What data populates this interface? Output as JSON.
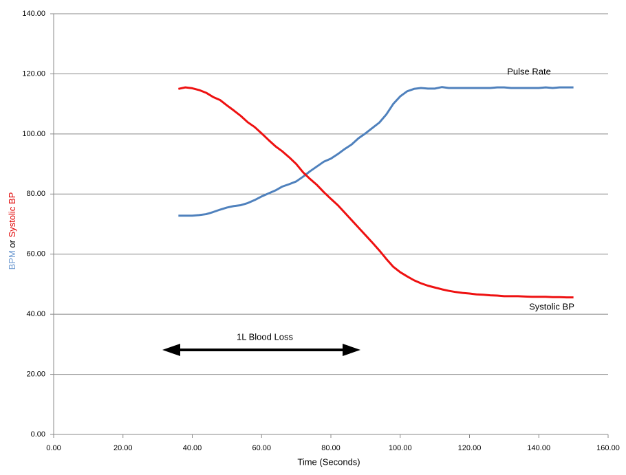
{
  "chart_data": {
    "type": "line",
    "xlabel": "Time (Seconds)",
    "ylabel_parts": [
      {
        "text": "BPM",
        "color": "#6f9bd1"
      },
      {
        "text": "or",
        "color": "#000000"
      },
      {
        "text": "Systolic BP",
        "color": "#e00000"
      }
    ],
    "annotation": "1L Blood Loss",
    "x": [
      36,
      38,
      40,
      42,
      44,
      46,
      48,
      50,
      52,
      54,
      56,
      58,
      60,
      62,
      64,
      66,
      68,
      70,
      72,
      74,
      76,
      78,
      80,
      82,
      84,
      86,
      88,
      90,
      92,
      94,
      96,
      98,
      100,
      102,
      104,
      106,
      108,
      110,
      112,
      114,
      116,
      118,
      120,
      122,
      124,
      126,
      128,
      130,
      132,
      134,
      136,
      138,
      140,
      142,
      144,
      146,
      148,
      150
    ],
    "series": [
      {
        "name": "Pulse Rate",
        "color": "#4f81bd",
        "values": [
          72.8,
          72.8,
          72.8,
          73.0,
          73.3,
          74.0,
          74.8,
          75.5,
          76.0,
          76.3,
          77.0,
          78.0,
          79.2,
          80.2,
          81.2,
          82.5,
          83.3,
          84.2,
          85.8,
          87.6,
          89.2,
          90.8,
          91.8,
          93.3,
          95.0,
          96.5,
          98.6,
          100.2,
          102.0,
          103.8,
          106.5,
          110.0,
          112.5,
          114.2,
          115.0,
          115.3,
          115.1,
          115.1,
          115.6,
          115.3,
          115.3,
          115.3,
          115.3,
          115.3,
          115.3,
          115.3,
          115.5,
          115.5,
          115.3,
          115.3,
          115.3,
          115.3,
          115.3,
          115.5,
          115.3,
          115.5,
          115.5,
          115.5
        ]
      },
      {
        "name": "Systolic BP",
        "color": "#ee1111",
        "values": [
          115.0,
          115.5,
          115.2,
          114.6,
          113.7,
          112.3,
          111.3,
          109.5,
          107.8,
          106.0,
          103.9,
          102.3,
          100.2,
          98.0,
          95.9,
          94.2,
          92.2,
          90.0,
          87.2,
          85.0,
          83.0,
          80.6,
          78.4,
          76.3,
          73.8,
          71.3,
          68.8,
          66.3,
          63.8,
          61.2,
          58.4,
          55.8,
          54.0,
          52.6,
          51.3,
          50.3,
          49.5,
          48.9,
          48.3,
          47.8,
          47.4,
          47.1,
          46.9,
          46.6,
          46.5,
          46.3,
          46.2,
          46.0,
          46.0,
          46.0,
          45.9,
          45.8,
          45.8,
          45.8,
          45.7,
          45.7,
          45.6,
          45.6
        ]
      }
    ],
    "xlim": [
      0,
      160
    ],
    "xticks": [
      {
        "value": 0,
        "label": "0.00"
      },
      {
        "value": 20,
        "label": "20.00"
      },
      {
        "value": 40,
        "label": "40.00"
      },
      {
        "value": 60,
        "label": "60.00"
      },
      {
        "value": 80,
        "label": "80.00"
      },
      {
        "value": 100,
        "label": "100.00"
      },
      {
        "value": 120,
        "label": "120.00"
      },
      {
        "value": 140,
        "label": "140.00"
      },
      {
        "value": 160,
        "label": "160.00"
      }
    ],
    "ylim": [
      0,
      140
    ],
    "yticks": [
      {
        "value": 0,
        "label": "0.00"
      },
      {
        "value": 20,
        "label": "20.00"
      },
      {
        "value": 40,
        "label": "40.00"
      },
      {
        "value": 60,
        "label": "60.00"
      },
      {
        "value": 80,
        "label": "80.00"
      },
      {
        "value": 100,
        "label": "100.00"
      },
      {
        "value": 120,
        "label": "120.00"
      },
      {
        "value": 140,
        "label": "140.00"
      }
    ],
    "grid": true
  }
}
